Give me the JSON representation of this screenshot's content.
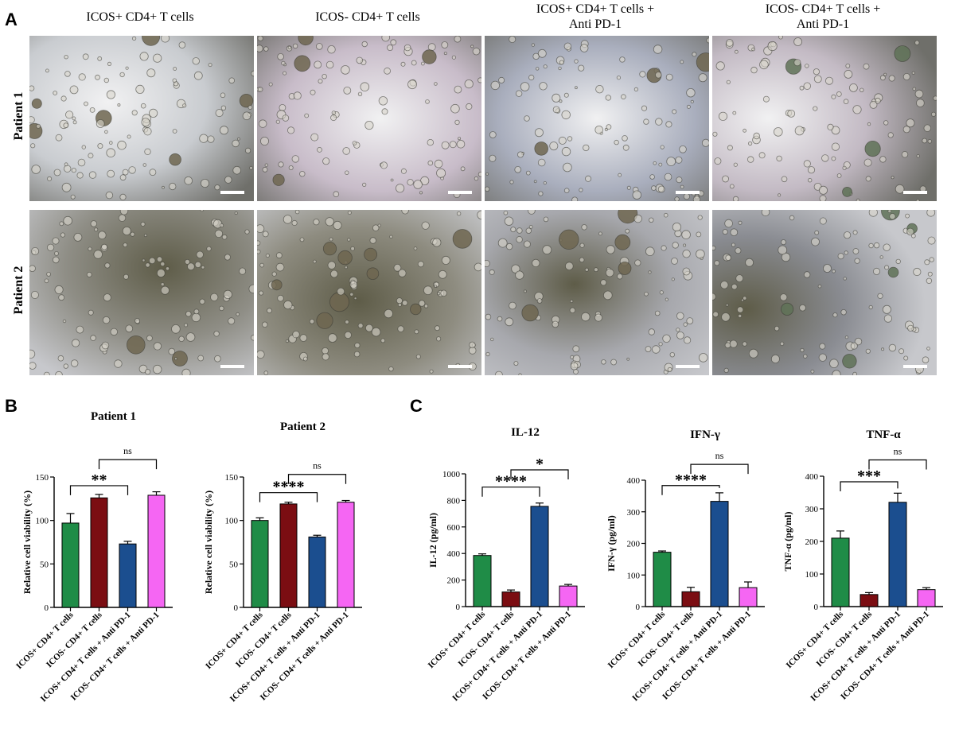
{
  "panel_labels": {
    "a": "A",
    "b": "B",
    "c": "C"
  },
  "micrographs": {
    "columns": [
      {
        "lines": [
          "ICOS+ CD4+ T cells"
        ]
      },
      {
        "lines": [
          "ICOS- CD4+ T cells"
        ]
      },
      {
        "lines": [
          "ICOS+ CD4+ T cells +",
          "Anti PD-1"
        ]
      },
      {
        "lines": [
          "ICOS- CD4+ T cells +",
          "Anti PD-1"
        ]
      }
    ],
    "rows": [
      "Patient 1",
      "Patient 2"
    ],
    "tints": [
      [
        "#c9ccd0",
        "#c8bcc9",
        "#a9aebd",
        "#c3bac4"
      ],
      [
        "#8f8e86",
        "#8e8c80",
        "#a7a8ad",
        "#8a8c92"
      ]
    ]
  },
  "colors": {
    "green": "#1f8c47",
    "maroon": "#7b0d12",
    "blue": "#1b4e8f",
    "magenta": "#f566f3"
  },
  "chart_data": [
    {
      "id": "b1",
      "type": "bar",
      "title": "Patient 1",
      "ylabel": "Relative cell viability (%)",
      "categories": [
        "ICOS+ CD4+ T cells",
        "ICOS- CD4+ T cells",
        "ICOS+ CD4+ T cells + Anti PD-1",
        "ICOS- CD4+ T cells + Anti PD-1"
      ],
      "values": [
        97,
        126,
        73,
        129
      ],
      "errors": [
        11,
        4,
        3,
        4
      ],
      "ylim": [
        0,
        150
      ],
      "yticks": [
        0,
        50,
        100,
        150
      ],
      "annotations": [
        {
          "from": 0,
          "to": 2,
          "label": "**",
          "y": 140
        },
        {
          "from": 1,
          "to": 3,
          "label": "ns",
          "y": 170
        }
      ]
    },
    {
      "id": "b2",
      "type": "bar",
      "title": "Patient 2",
      "ylabel": "Relative cell viability (%)",
      "categories": [
        "ICOS+ CD4+ T cells",
        "ICOS- CD4+ T cells",
        "ICOS+ CD4+ T cells + Anti PD-1",
        "ICOS- CD4+ T cells + Anti PD-1"
      ],
      "values": [
        100,
        119,
        81,
        121
      ],
      "errors": [
        3,
        2,
        2,
        2
      ],
      "ylim": [
        0,
        150
      ],
      "yticks": [
        0,
        50,
        100,
        150
      ],
      "annotations": [
        {
          "from": 0,
          "to": 2,
          "label": "****",
          "y": 132
        },
        {
          "from": 1,
          "to": 3,
          "label": "ns",
          "y": 153
        }
      ]
    },
    {
      "id": "c1",
      "type": "bar",
      "title": "IL-12",
      "ylabel": "IL-12 (pg/ml)",
      "categories": [
        "ICOS+ CD4+ T cells",
        "ICOS- CD4+ T cells",
        "ICOS+ CD4+ T cells + Anti PD-1",
        "ICOS- CD4+ T cells + Anti PD-1"
      ],
      "values": [
        385,
        110,
        755,
        155
      ],
      "errors": [
        12,
        15,
        25,
        12
      ],
      "ylim": [
        0,
        1000
      ],
      "yticks": [
        0,
        200,
        400,
        600,
        800,
        1000
      ],
      "annotations": [
        {
          "from": 0,
          "to": 2,
          "label": "****",
          "y": 900
        },
        {
          "from": 1,
          "to": 3,
          "label": "*",
          "y": 1030
        }
      ]
    },
    {
      "id": "c2",
      "type": "bar",
      "title": "IFN-γ",
      "ylabel": "IFN-γ (pg/ml)",
      "categories": [
        "ICOS+ CD4+ T cells",
        "ICOS- CD4+ T cells",
        "ICOS+ CD4+ T cells + Anti PD-1",
        "ICOS- CD4+ T cells + Anti PD-1"
      ],
      "values": [
        172,
        47,
        333,
        60
      ],
      "errors": [
        4,
        14,
        27,
        18
      ],
      "ylim": [
        0,
        400
      ],
      "yticks": [
        0,
        100,
        200,
        300,
        400
      ],
      "annotations": [
        {
          "from": 0,
          "to": 2,
          "label": "****",
          "y": 383
        },
        {
          "from": 1,
          "to": 3,
          "label": "ns",
          "y": 450
        }
      ]
    },
    {
      "id": "c3",
      "type": "bar",
      "title": "TNF-α",
      "ylabel": "TNF-α (pg/ml)",
      "categories": [
        "ICOS+ CD4+ T cells",
        "ICOS- CD4+ T cells",
        "ICOS+ CD4+ T cells + Anti PD-1",
        "ICOS- CD4+ T cells + Anti PD-1"
      ],
      "values": [
        210,
        37,
        320,
        52
      ],
      "errors": [
        22,
        6,
        28,
        6
      ],
      "ylim": [
        0,
        400
      ],
      "yticks": [
        0,
        100,
        200,
        300,
        400
      ],
      "annotations": [
        {
          "from": 0,
          "to": 2,
          "label": "***",
          "y": 383
        },
        {
          "from": 1,
          "to": 3,
          "label": "ns",
          "y": 450
        }
      ]
    }
  ]
}
